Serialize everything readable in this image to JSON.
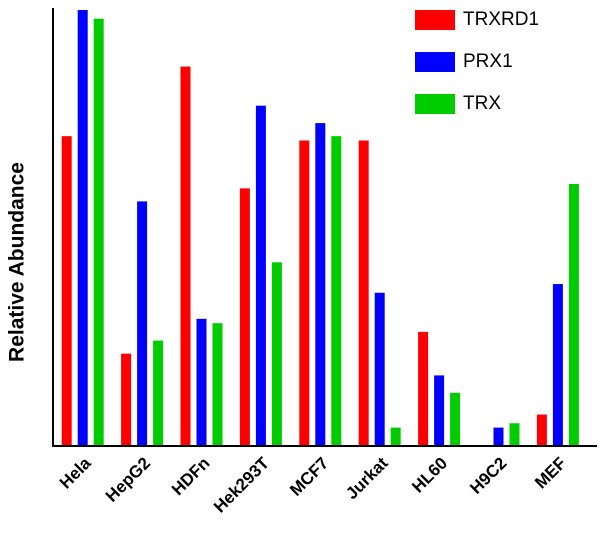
{
  "chart_data": {
    "type": "bar",
    "y_label": "Relative Abundance",
    "categories": [
      "Hela",
      "HepG2",
      "HDFn",
      "Hek293T",
      "MCF7",
      "Jurkat",
      "HL60",
      "H9C2",
      "MEF"
    ],
    "series": [
      {
        "name": "TRXRD1",
        "color": "#ff0000",
        "values": [
          71,
          21,
          87,
          59,
          70,
          70,
          26,
          0,
          7
        ]
      },
      {
        "name": "PRX1",
        "color": "#0000ff",
        "values": [
          100,
          56,
          29,
          78,
          74,
          35,
          16,
          4,
          37
        ]
      },
      {
        "name": "TRX",
        "color": "#00cc00",
        "values": [
          98,
          24,
          28,
          42,
          71,
          4,
          12,
          5,
          60
        ]
      }
    ],
    "ylim": [
      0,
      100
    ],
    "legend": "top-right"
  }
}
